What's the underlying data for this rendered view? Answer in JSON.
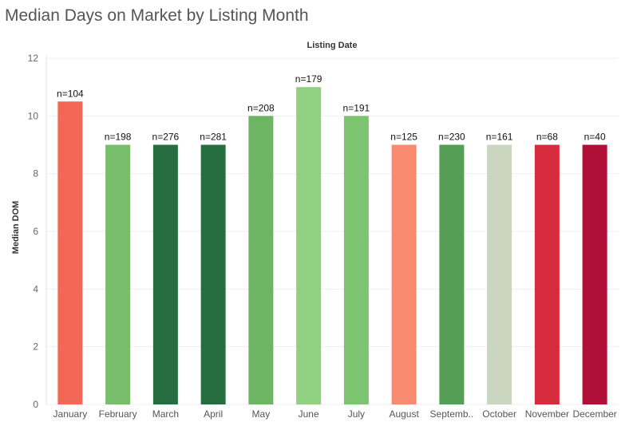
{
  "page": {
    "title": "Median Days on Market by Listing Month"
  },
  "chart_data": {
    "type": "bar",
    "title": "Median Days on Market by Listing Month",
    "xlabel": "Listing Date",
    "ylabel": "Median DOM",
    "ylim": [
      0,
      12
    ],
    "yticks": [
      0,
      2,
      4,
      6,
      8,
      10,
      12
    ],
    "grid": true,
    "categories": [
      "January",
      "February",
      "March",
      "April",
      "May",
      "June",
      "July",
      "August",
      "Septemb..",
      "October",
      "November",
      "December"
    ],
    "values": [
      10.5,
      9,
      9,
      9,
      10,
      11,
      10,
      9,
      9,
      9,
      9,
      9
    ],
    "data_labels": [
      "n=104",
      "n=198",
      "n=276",
      "n=281",
      "n=208",
      "n=179",
      "n=191",
      "n=125",
      "n=230",
      "n=161",
      "n=68",
      "n=40"
    ],
    "colors": [
      "#f26755",
      "#77bd6a",
      "#266e40",
      "#266e40",
      "#6db562",
      "#8fd180",
      "#7dc470",
      "#f88a70",
      "#559e55",
      "#cbd6c0",
      "#d62c3e",
      "#b01038"
    ]
  }
}
